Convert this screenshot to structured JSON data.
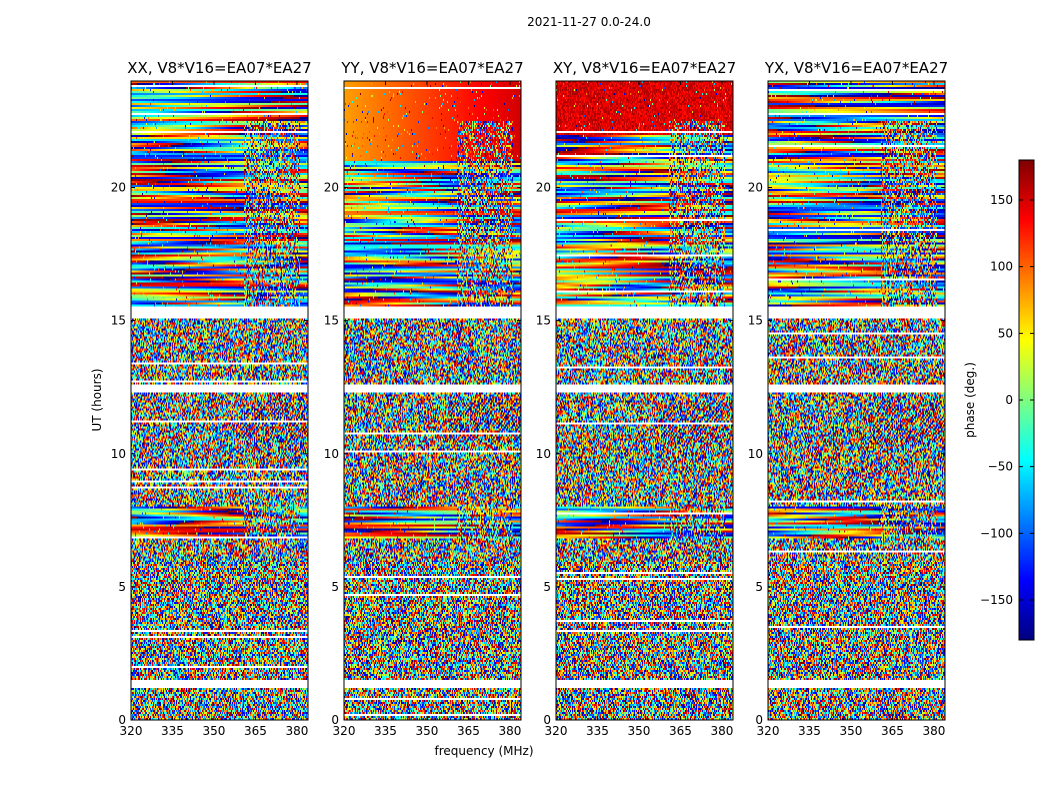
{
  "chart_data": {
    "type": "heatmap",
    "suptitle": "2021-11-27 0.0-24.0",
    "xlabel": "frequency (MHz)",
    "ylabel": "UT (hours)",
    "xlim": [
      320,
      384
    ],
    "ylim": [
      0,
      24
    ],
    "xticks": [
      320,
      335,
      350,
      365,
      380
    ],
    "xtick_labels": [
      "320",
      "335",
      "350",
      "365",
      "380"
    ],
    "yticks": [
      0,
      5,
      10,
      15,
      20
    ],
    "ytick_labels": [
      "0",
      "5",
      "10",
      "15",
      "20"
    ],
    "panels": [
      {
        "title": "XX, V8*V16=EA07*EA27",
        "key": "XX"
      },
      {
        "title": "YY, V8*V16=EA07*EA27",
        "key": "YY"
      },
      {
        "title": "XY, V8*V16=EA07*EA27",
        "key": "XY"
      },
      {
        "title": "YX, V8*V16=EA07*EA27",
        "key": "YX"
      }
    ],
    "colorbar": {
      "label": "phase (deg.)",
      "range": [
        -180,
        180
      ],
      "ticks": [
        150,
        100,
        50,
        0,
        -50,
        -100,
        -150
      ],
      "tick_labels": [
        "150",
        "100",
        "50",
        "0",
        "−50",
        "−100",
        "−150"
      ],
      "colormap": "jet"
    },
    "coherent_ut_ranges": [
      [
        15.5,
        24.0
      ],
      [
        6.8,
        8.0
      ]
    ],
    "rfi_frequency_range_mhz": [
      361,
      381
    ],
    "flagged_ut_ranges": [
      [
        1.2,
        1.5
      ],
      [
        12.3,
        12.6
      ],
      [
        15.1,
        15.5
      ]
    ]
  },
  "colors": {
    "background": "#ffffff",
    "axes": "#000000",
    "flagged": "#ffffff",
    "jet_stops": [
      "#00007f",
      "#0000ff",
      "#007fff",
      "#00ffff",
      "#7fff7f",
      "#ffff00",
      "#ff7f00",
      "#ff0000",
      "#7f0000"
    ]
  }
}
